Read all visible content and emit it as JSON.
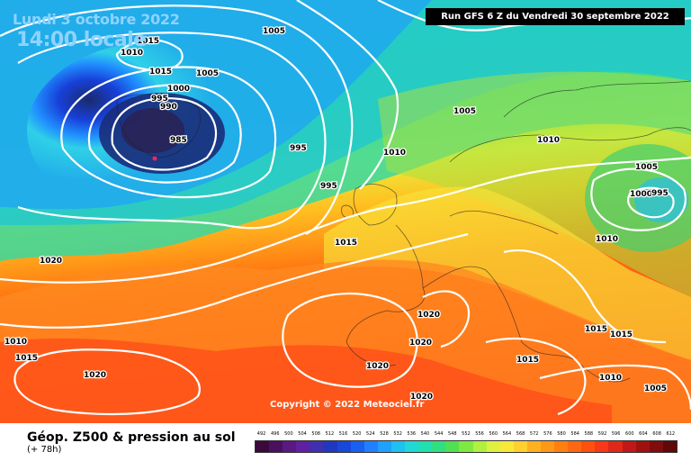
{
  "header": {
    "date": "Lundi 3 octobre 2022",
    "time": "14:00 locale",
    "run": "Run GFS 6 Z du Vendredi 30 septembre 2022"
  },
  "footer": {
    "copyright": "Copyright © 2022 Meteociel.fr",
    "title": "Géop. Z500 & pression au sol",
    "lead": "(+ 78h)"
  },
  "pressure_labels": [
    "1015",
    "1010",
    "1015",
    "1005",
    "1000",
    "995",
    "990",
    "985",
    "1005",
    "995",
    "995",
    "1005",
    "1010",
    "1010",
    "1005",
    "1000",
    "995",
    "1010",
    "1015",
    "1020",
    "1010",
    "1015",
    "1020",
    "1020",
    "1020",
    "1020",
    "1020",
    "1015",
    "1015",
    "1015",
    "1010",
    "1005"
  ],
  "scale": {
    "labels": [
      "492",
      "496",
      "500",
      "504",
      "508",
      "512",
      "516",
      "520",
      "524",
      "528",
      "532",
      "536",
      "540",
      "544",
      "548",
      "552",
      "556",
      "560",
      "564",
      "568",
      "572",
      "576",
      "580",
      "584",
      "588",
      "592",
      "596",
      "600",
      "604",
      "608",
      "612"
    ],
    "colors": [
      "#3a0a3a",
      "#4a1060",
      "#5a1880",
      "#6020a0",
      "#4030b0",
      "#2038c0",
      "#1848d8",
      "#1860f0",
      "#2080ff",
      "#20a0ff",
      "#20c0f0",
      "#20d8d8",
      "#20e0b0",
      "#30e080",
      "#50e050",
      "#80e840",
      "#b0f040",
      "#e0f040",
      "#f8e838",
      "#ffd030",
      "#ffb020",
      "#ff9818",
      "#ff8010",
      "#ff6810",
      "#ff5010",
      "#f83818",
      "#e02818",
      "#c01818",
      "#a01010",
      "#800c0c",
      "#600808"
    ]
  }
}
